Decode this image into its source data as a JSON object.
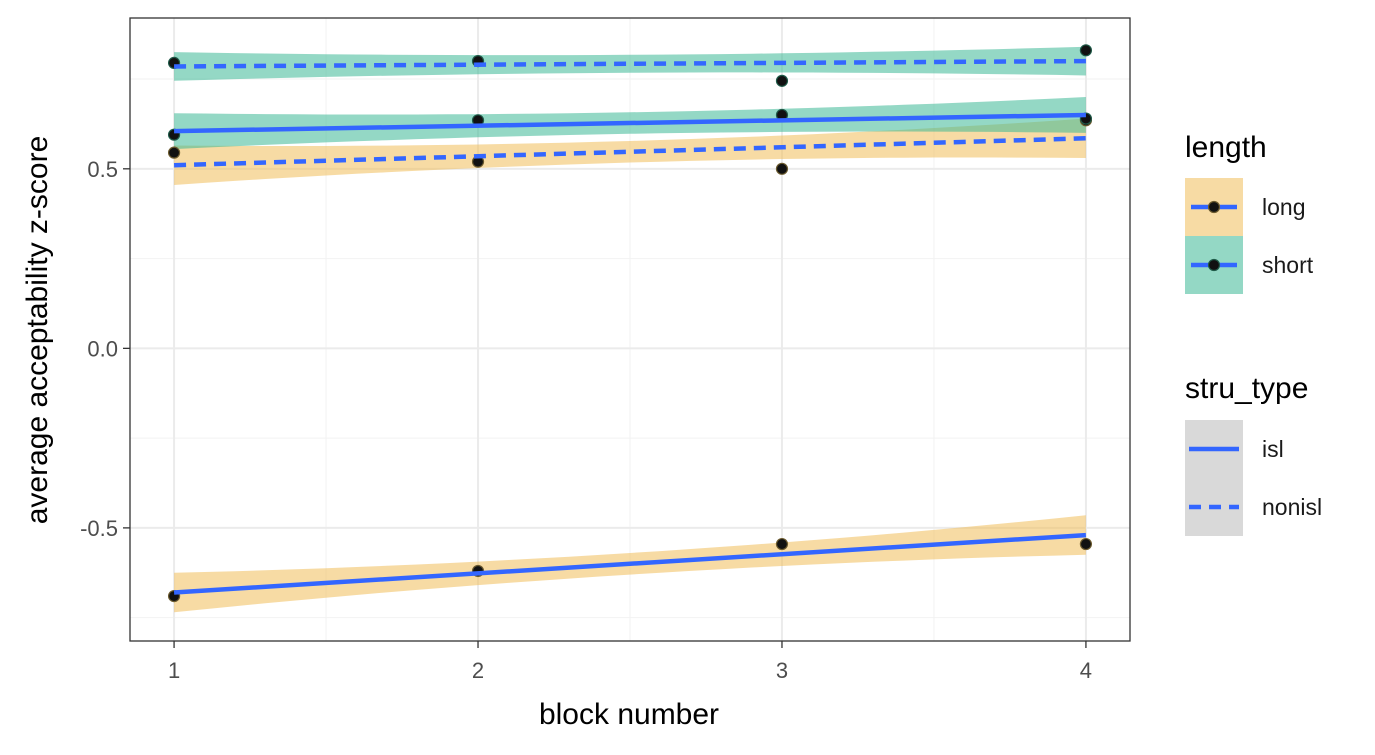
{
  "chart_data": {
    "type": "line",
    "xlabel": "block number",
    "ylabel": "average acceptability z-score",
    "xlim": [
      0.855,
      4.145
    ],
    "ylim": [
      -0.815,
      0.92
    ],
    "x_ticks": [
      1,
      2,
      3,
      4
    ],
    "x_tick_labels": [
      "1",
      "2",
      "3",
      "4"
    ],
    "y_ticks": [
      0.5,
      0.0,
      -0.5
    ],
    "y_tick_labels": [
      "0.5",
      "0.0",
      "-0.5"
    ],
    "grid": true,
    "legend_position": "right",
    "colors": {
      "long_band": "#F0BE5A",
      "short_band": "#3CB896",
      "line": "#3366FF",
      "point": "#000000",
      "legend_key_bg": "#D9D9D9"
    },
    "series": [
      {
        "length": "long",
        "stru_type": "isl",
        "points": {
          "x": [
            1,
            2,
            3,
            4
          ],
          "y": [
            -0.69,
            -0.62,
            -0.545,
            -0.545
          ]
        },
        "fit": {
          "y1": -0.68,
          "y4": -0.52,
          "band_half_width_ends": 0.055,
          "band_half_width_mid": 0.03
        }
      },
      {
        "length": "long",
        "stru_type": "nonisl",
        "points": {
          "x": [
            1,
            2,
            3,
            4
          ],
          "y": [
            0.545,
            0.52,
            0.5,
            0.635
          ]
        },
        "fit": {
          "y1": 0.51,
          "y4": 0.585,
          "band_half_width_ends": 0.055,
          "band_half_width_mid": 0.03
        }
      },
      {
        "length": "short",
        "stru_type": "isl",
        "points": {
          "x": [
            1,
            2,
            3,
            4
          ],
          "y": [
            0.595,
            0.635,
            0.65,
            0.64
          ]
        },
        "fit": {
          "y1": 0.605,
          "y4": 0.65,
          "band_half_width_ends": 0.05,
          "band_half_width_mid": 0.03
        }
      },
      {
        "length": "short",
        "stru_type": "nonisl",
        "points": {
          "x": [
            1,
            2,
            3,
            4
          ],
          "y": [
            0.795,
            0.8,
            0.745,
            0.83
          ]
        },
        "fit": {
          "y1": 0.785,
          "y4": 0.8,
          "band_half_width_ends": 0.04,
          "band_half_width_mid": 0.025
        }
      }
    ],
    "legends": [
      {
        "title": "length",
        "entries": [
          {
            "label": "long",
            "band": "long_band"
          },
          {
            "label": "short",
            "band": "short_band"
          }
        ]
      },
      {
        "title": "stru_type",
        "entries": [
          {
            "label": "isl",
            "linetype": "solid"
          },
          {
            "label": "nonisl",
            "linetype": "dashed"
          }
        ]
      }
    ]
  }
}
